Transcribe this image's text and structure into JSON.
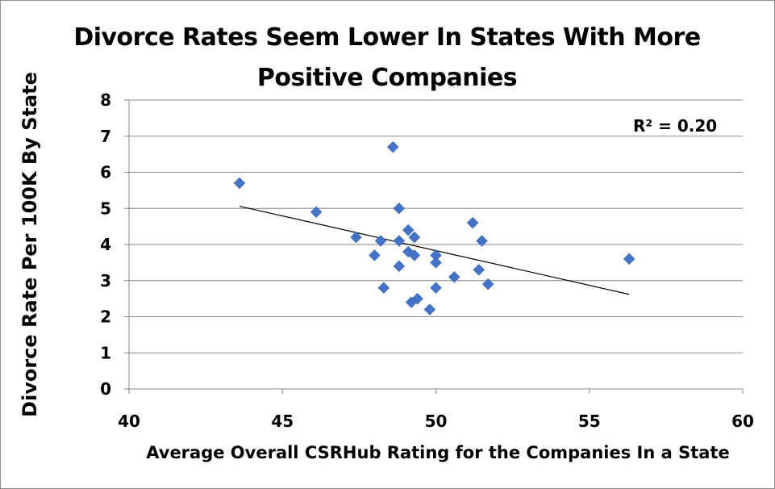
{
  "chart_data": {
    "type": "scatter",
    "title_lines": [
      "Divorce Rates Seem Lower In States With More",
      "Positive Companies"
    ],
    "xlabel": "Average Overall CSRHub Rating for the Companies In a State",
    "ylabel": "Divorce Rate Per 100K By State",
    "xlim": [
      40,
      60
    ],
    "ylim": [
      0,
      8
    ],
    "xticks": [
      40,
      45,
      50,
      55,
      60
    ],
    "yticks": [
      0,
      1,
      2,
      3,
      4,
      5,
      6,
      7,
      8
    ],
    "grid": "horizontal",
    "marker_color": "#4472c4",
    "points": [
      {
        "x": 43.6,
        "y": 5.7
      },
      {
        "x": 46.1,
        "y": 4.9
      },
      {
        "x": 47.4,
        "y": 4.2
      },
      {
        "x": 48.0,
        "y": 3.7
      },
      {
        "x": 48.2,
        "y": 4.1
      },
      {
        "x": 48.3,
        "y": 2.8
      },
      {
        "x": 48.6,
        "y": 6.7
      },
      {
        "x": 48.8,
        "y": 5.0
      },
      {
        "x": 48.8,
        "y": 4.1
      },
      {
        "x": 48.8,
        "y": 3.4
      },
      {
        "x": 49.1,
        "y": 4.4
      },
      {
        "x": 49.1,
        "y": 3.8
      },
      {
        "x": 49.2,
        "y": 2.4
      },
      {
        "x": 49.3,
        "y": 4.2
      },
      {
        "x": 49.3,
        "y": 3.7
      },
      {
        "x": 49.4,
        "y": 2.5
      },
      {
        "x": 49.8,
        "y": 2.2
      },
      {
        "x": 50.0,
        "y": 3.7
      },
      {
        "x": 50.0,
        "y": 3.5
      },
      {
        "x": 50.0,
        "y": 2.8
      },
      {
        "x": 50.6,
        "y": 3.1
      },
      {
        "x": 51.2,
        "y": 4.6
      },
      {
        "x": 51.5,
        "y": 4.1
      },
      {
        "x": 51.4,
        "y": 3.3
      },
      {
        "x": 51.7,
        "y": 2.9
      },
      {
        "x": 56.3,
        "y": 3.6
      }
    ],
    "trendline": {
      "type": "linear",
      "x": [
        43.6,
        56.3
      ],
      "y": [
        5.06,
        2.62
      ],
      "color": "#000000"
    },
    "annotation": "R² = 0.20"
  }
}
